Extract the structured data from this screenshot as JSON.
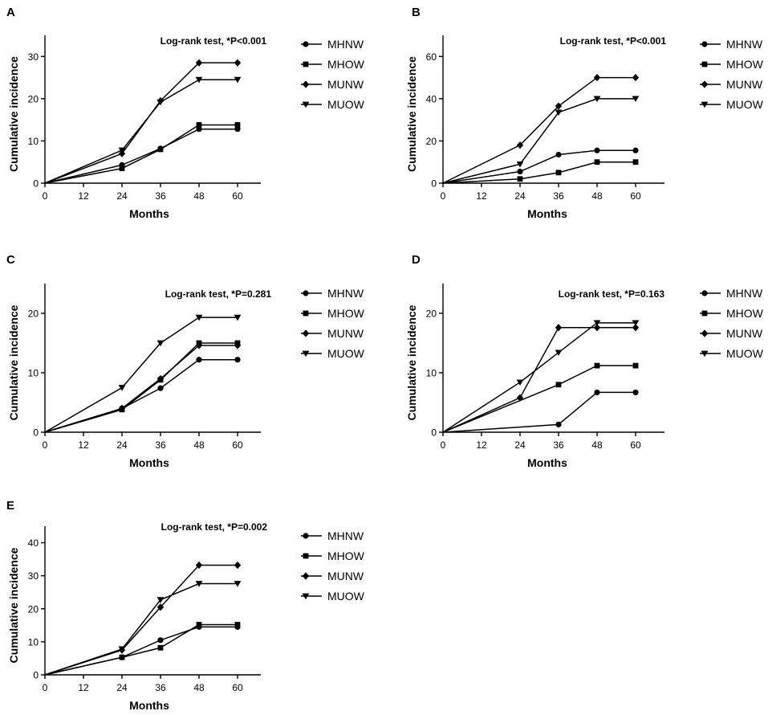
{
  "figure": {
    "marker_color": "#000000",
    "line_color": "#000000"
  },
  "chart_data": [
    {
      "panel": "A",
      "type": "line",
      "title": "",
      "annotation": "Log-rank test, *P<0.001",
      "xlabel": "Months",
      "ylabel": "Cumulative incidence",
      "x": [
        0,
        24,
        36,
        48,
        60
      ],
      "xticks": [
        0,
        12,
        24,
        36,
        48,
        60
      ],
      "ylim": [
        0,
        35
      ],
      "yticks": [
        0,
        10,
        20,
        30
      ],
      "legend": "right",
      "series": [
        {
          "name": "MHNW",
          "marker": "circle",
          "values": [
            0,
            4.3,
            8.2,
            12.8,
            12.8
          ]
        },
        {
          "name": "MHOW",
          "marker": "square",
          "values": [
            0,
            3.5,
            8.0,
            13.8,
            13.8
          ]
        },
        {
          "name": "MUNW",
          "marker": "diamond",
          "values": [
            0,
            7.0,
            19.5,
            28.5,
            28.5
          ]
        },
        {
          "name": "MUOW",
          "marker": "triangle-down",
          "values": [
            0,
            7.8,
            19.2,
            24.5,
            24.5
          ]
        }
      ]
    },
    {
      "panel": "B",
      "type": "line",
      "title": "",
      "annotation": "Log-rank test, *P<0.001",
      "xlabel": "Months",
      "ylabel": "Cumulative incidence",
      "x": [
        0,
        24,
        36,
        48,
        60
      ],
      "xticks": [
        0,
        12,
        24,
        36,
        48,
        60
      ],
      "ylim": [
        0,
        70
      ],
      "yticks": [
        0,
        20,
        40,
        60
      ],
      "legend": "right",
      "series": [
        {
          "name": "MHNW",
          "marker": "circle",
          "values": [
            0,
            5.5,
            13.5,
            15.5,
            15.5
          ]
        },
        {
          "name": "MHOW",
          "marker": "square",
          "values": [
            0,
            2.0,
            5.0,
            10.0,
            10.0
          ]
        },
        {
          "name": "MUNW",
          "marker": "diamond",
          "values": [
            0,
            18.0,
            36.5,
            50.0,
            50.0
          ]
        },
        {
          "name": "MUOW",
          "marker": "triangle-down",
          "values": [
            0,
            9.0,
            33.5,
            40.0,
            40.0
          ]
        }
      ]
    },
    {
      "panel": "C",
      "type": "line",
      "title": "",
      "annotation": "Log-rank test, *P=0.281",
      "xlabel": "Months",
      "ylabel": "Cumulative incidence",
      "x": [
        0,
        24,
        36,
        48,
        60
      ],
      "xticks": [
        0,
        12,
        24,
        36,
        48,
        60
      ],
      "ylim": [
        0,
        25
      ],
      "yticks": [
        0,
        10,
        20
      ],
      "legend": "right",
      "series": [
        {
          "name": "MHNW",
          "marker": "circle",
          "values": [
            0,
            4.0,
            7.4,
            12.2,
            12.2
          ]
        },
        {
          "name": "MHOW",
          "marker": "square",
          "values": [
            0,
            3.8,
            8.8,
            15.0,
            15.0
          ]
        },
        {
          "name": "MUNW",
          "marker": "diamond",
          "values": [
            0,
            4.0,
            9.0,
            14.6,
            14.6
          ]
        },
        {
          "name": "MUOW",
          "marker": "triangle-down",
          "values": [
            0,
            7.5,
            15.0,
            19.3,
            19.3
          ]
        }
      ]
    },
    {
      "panel": "D",
      "type": "line",
      "title": "",
      "annotation": "Log-rank test, *P=0.163",
      "xlabel": "Months",
      "ylabel": "Cumulative incidence",
      "x": [
        0,
        24,
        36,
        48,
        60
      ],
      "xticks": [
        0,
        12,
        24,
        36,
        48,
        60
      ],
      "ylim": [
        0,
        25
      ],
      "yticks": [
        0,
        10,
        20
      ],
      "legend": "right",
      "series": [
        {
          "name": "MHNW",
          "marker": "circle",
          "values": [
            0,
            null,
            1.3,
            6.7,
            6.7
          ]
        },
        {
          "name": "MHOW",
          "marker": "square",
          "values": [
            0,
            null,
            8.0,
            11.2,
            11.2
          ]
        },
        {
          "name": "MUNW",
          "marker": "diamond",
          "values": [
            0,
            5.8,
            17.6,
            17.6,
            17.6
          ]
        },
        {
          "name": "MUOW",
          "marker": "triangle-down",
          "values": [
            0,
            8.4,
            13.4,
            18.4,
            18.4
          ]
        }
      ]
    },
    {
      "panel": "E",
      "type": "line",
      "title": "",
      "annotation": "Log-rank test, *P=0.002",
      "xlabel": "Months",
      "ylabel": "Cumulative incidence",
      "x": [
        0,
        24,
        36,
        48,
        60
      ],
      "xticks": [
        0,
        12,
        24,
        36,
        48,
        60
      ],
      "ylim": [
        0,
        45
      ],
      "yticks": [
        0,
        10,
        20,
        30,
        40
      ],
      "legend": "right",
      "series": [
        {
          "name": "MHNW",
          "marker": "circle",
          "values": [
            0,
            5.3,
            10.5,
            14.5,
            14.5
          ]
        },
        {
          "name": "MHOW",
          "marker": "square",
          "values": [
            0,
            5.3,
            8.2,
            15.2,
            15.2
          ]
        },
        {
          "name": "MUNW",
          "marker": "diamond",
          "values": [
            0,
            7.5,
            20.5,
            33.2,
            33.2
          ]
        },
        {
          "name": "MUOW",
          "marker": "triangle-down",
          "values": [
            0,
            7.8,
            22.7,
            27.6,
            27.6
          ]
        }
      ]
    }
  ]
}
